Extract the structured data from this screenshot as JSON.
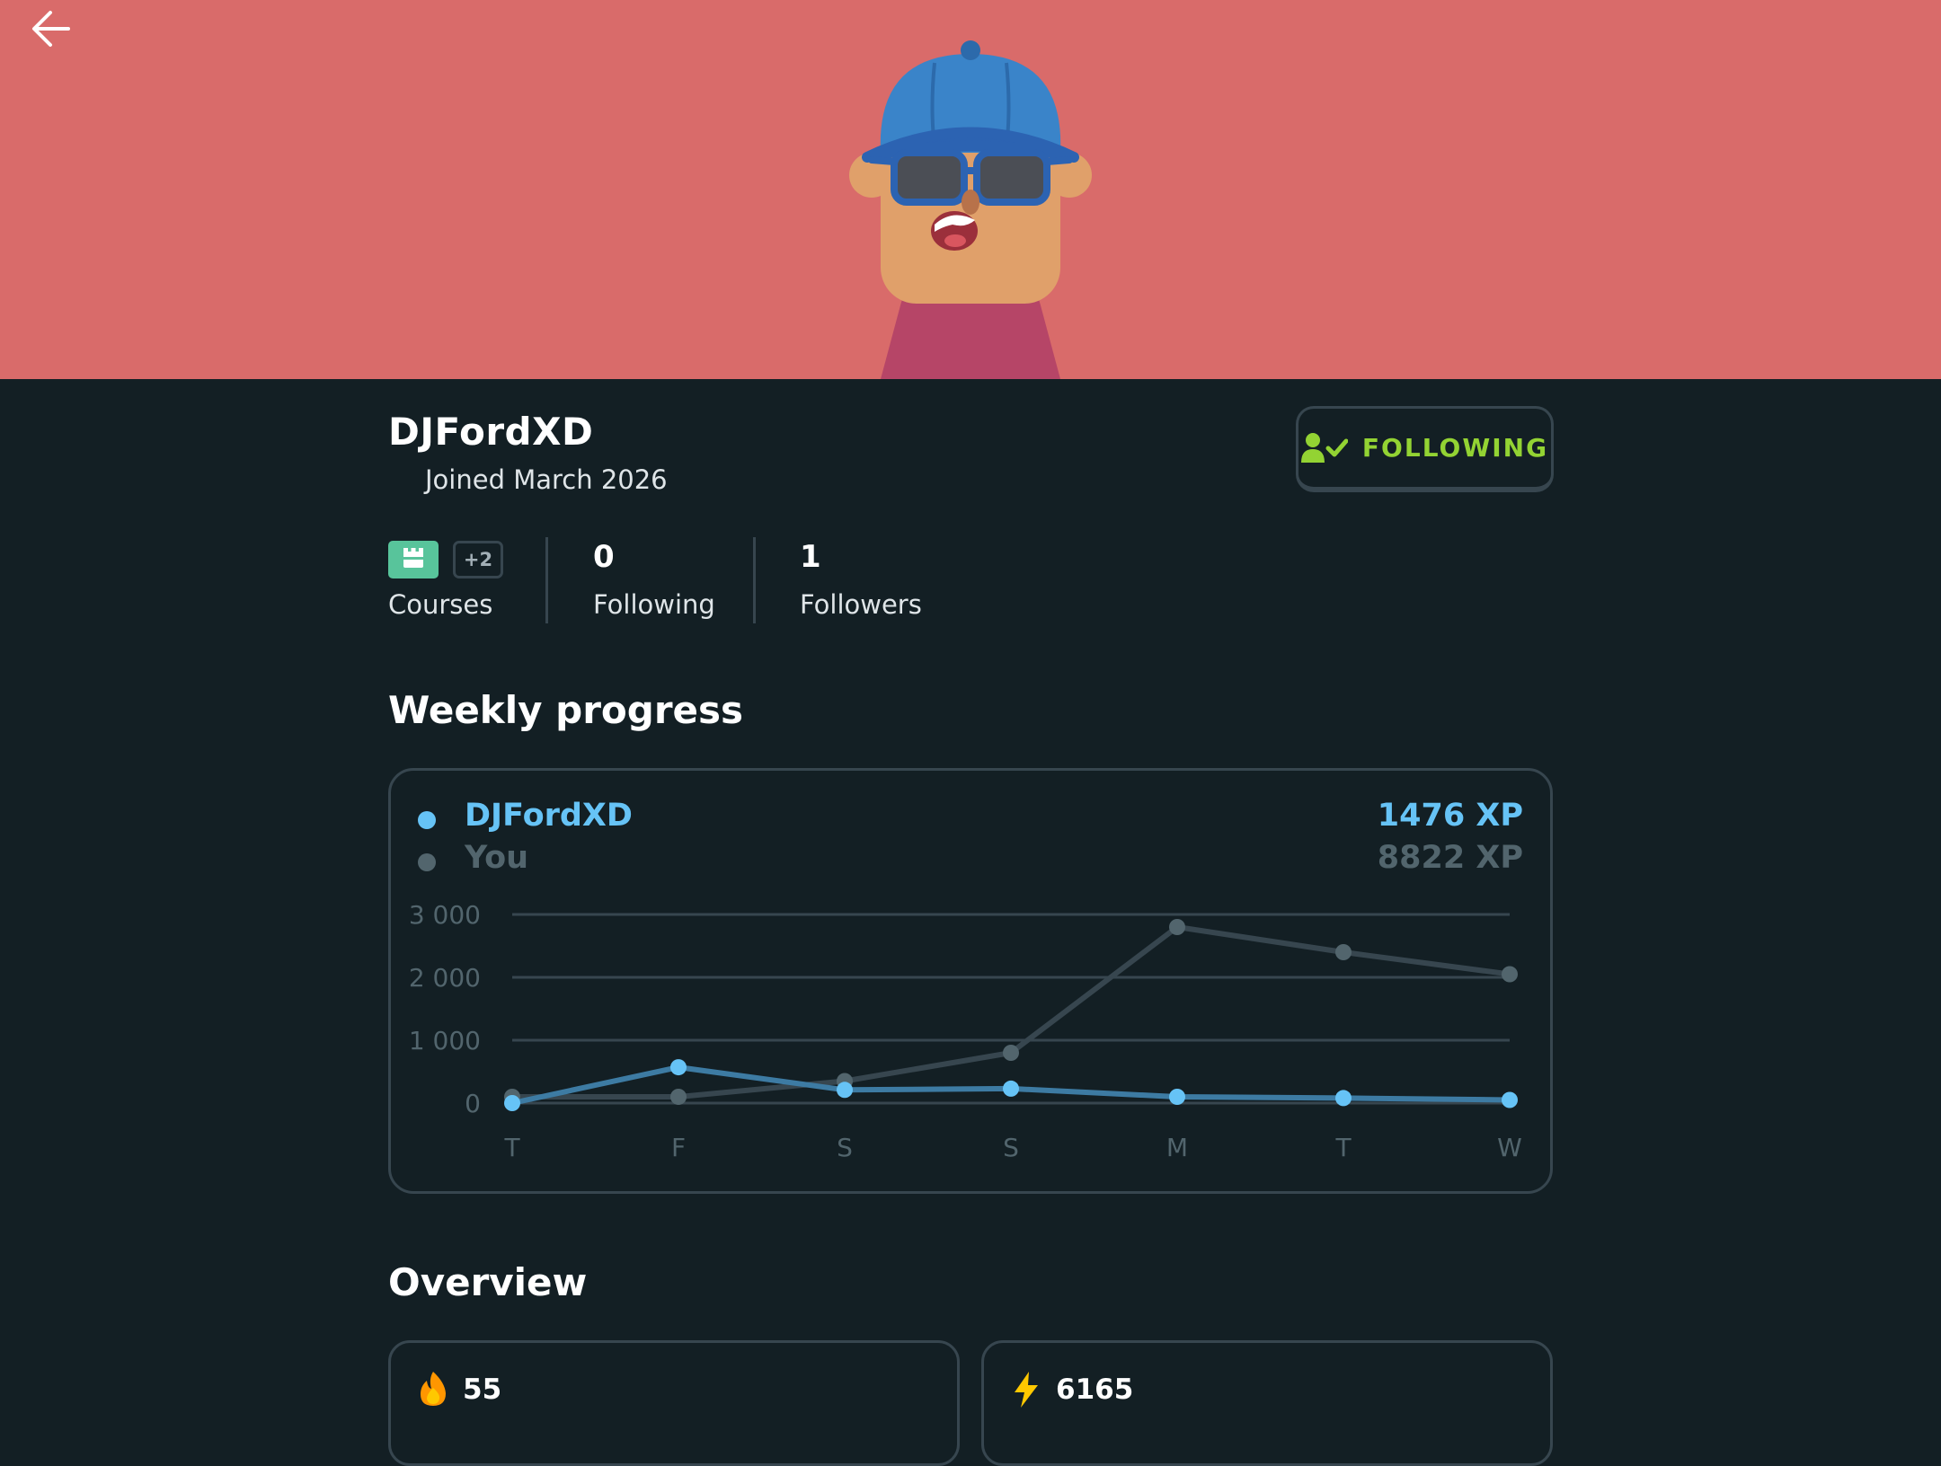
{
  "banner": {
    "color": "#d96b6a"
  },
  "profile": {
    "username": "DJFordXD",
    "joined": "Joined March 2026",
    "follow_button": "FOLLOWING",
    "courses_more": "+2",
    "courses_label": "Courses",
    "following_count": "0",
    "following_label": "Following",
    "followers_count": "1",
    "followers_label": "Followers"
  },
  "weekly": {
    "title": "Weekly progress",
    "legend": [
      {
        "name": "DJFordXD",
        "xp": "1476 XP",
        "color": "#66c3f6"
      },
      {
        "name": "You",
        "xp": "8822 XP",
        "color": "#52656d"
      }
    ]
  },
  "chart_data": {
    "type": "line",
    "x": [
      "T",
      "F",
      "S",
      "S",
      "M",
      "T",
      "W"
    ],
    "y_ticks": [
      "3 000",
      "2 000",
      "1 000",
      "0"
    ],
    "ylim": [
      0,
      3000
    ],
    "grid": true,
    "series": [
      {
        "name": "DJFordXD",
        "values": [
          0,
          570,
          210,
          230,
          100,
          80,
          50
        ]
      },
      {
        "name": "You",
        "values": [
          100,
          100,
          350,
          800,
          2800,
          2400,
          2050
        ]
      }
    ]
  },
  "overview": {
    "title": "Overview",
    "cards": [
      {
        "value": "55",
        "icon": "fire-icon"
      },
      {
        "value": "6165",
        "icon": "lightning-icon"
      }
    ]
  }
}
